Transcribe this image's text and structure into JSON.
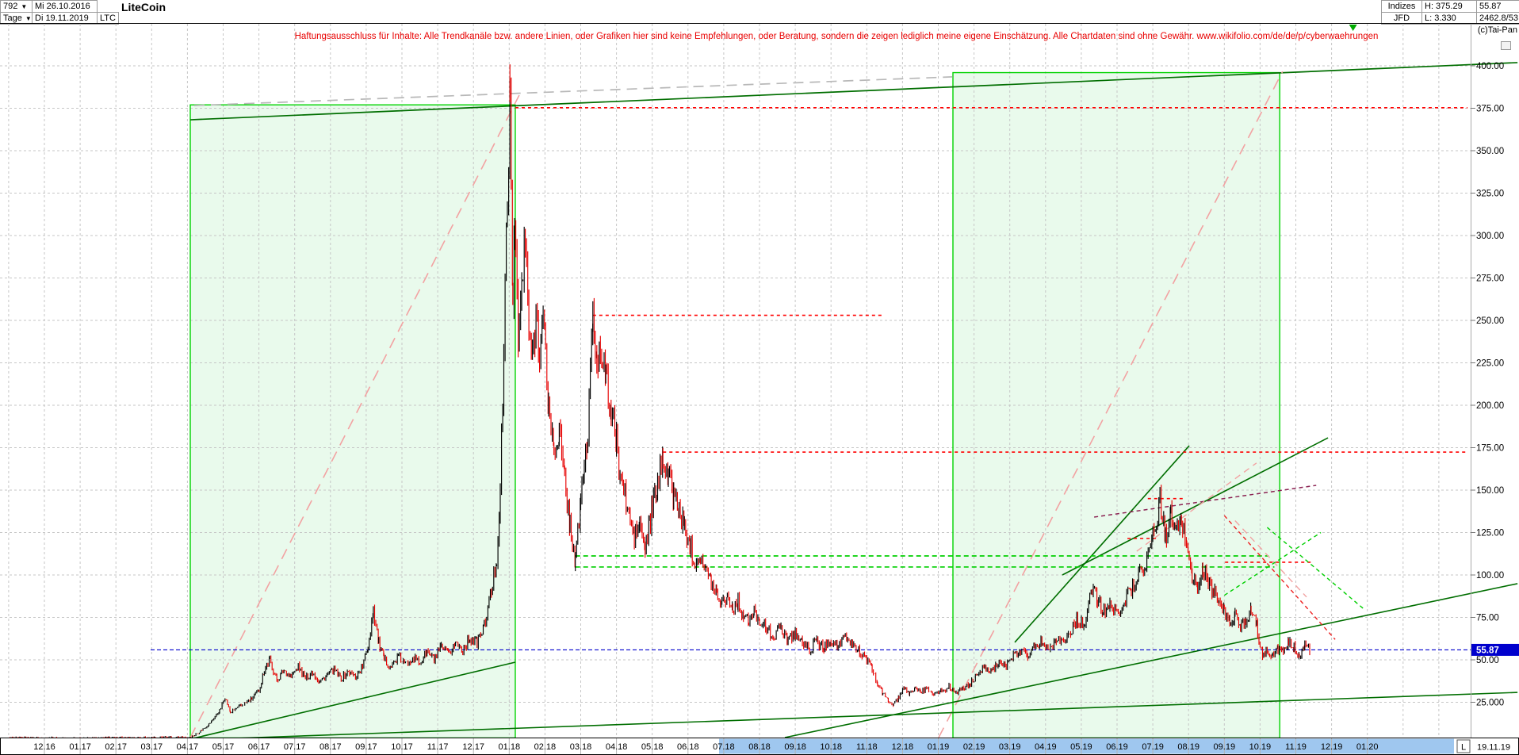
{
  "header": {
    "bars_count": "792",
    "dropdown_icon": "▼",
    "start_date": "Mi 26.10.2016",
    "period": "Tage",
    "end_date": "Di 19.11.2019",
    "symbol": "LTC",
    "instrument_name": "LiteCoin",
    "provider_row1": "Indizes",
    "provider_row2": "JFD",
    "high_label": "H: 375.29",
    "low_label": "L: 3.330",
    "last_price": "55.87",
    "volume_info": "2462.8/53",
    "copyright": "(c)Tai-Pan",
    "collapse_glyph": "▭"
  },
  "disclaimer": "Haftungsausschluss für Inhalte: Alle Trendkanäle bzw. andere Linien, oder Grafiken hier sind keine Empfehlungen, oder Beratung, sondern die zeigen lediglich meine eigene Einschätzung. Alle Chartdaten sind ohne Gewähr.  www.wikifolio.com/de/de/p/cyberwaehrungen",
  "price_axis": {
    "labels": [
      "400.00",
      "375.00",
      "350.00",
      "325.00",
      "300.00",
      "275.00",
      "250.00",
      "225.00",
      "200.00",
      "175.00",
      "150.00",
      "125.00",
      "100.00",
      "75.00",
      "50.00",
      "25.000"
    ],
    "values": [
      400,
      375,
      350,
      325,
      300,
      275,
      250,
      225,
      200,
      175,
      150,
      125,
      100,
      75,
      50,
      25
    ],
    "current_price_label": "55.87",
    "current_price_value": 55.87
  },
  "time_axis": {
    "labels": [
      "12.16",
      "01.17",
      "02.17",
      "03.17",
      "04.17",
      "05.17",
      "06.17",
      "07.17",
      "08.17",
      "09.17",
      "10.17",
      "11.17",
      "12.17",
      "01.18",
      "02.18",
      "03.18",
      "04.18",
      "05.18",
      "06.18",
      "07.18",
      "08.18",
      "09.18",
      "10.18",
      "11.18",
      "12.18",
      "01.19",
      "02.19",
      "03.19",
      "04.19",
      "05.19",
      "06.19",
      "07.19",
      "08.19",
      "09.19",
      "10.19",
      "11.19",
      "12.19",
      "01.20"
    ],
    "highlight_from_label": "07.18",
    "highlight_to_label": "01.20",
    "last_bar_label": "L",
    "last_date": "19.11.19"
  },
  "chart_data": {
    "type": "candlestick-daily",
    "instrument": "LiteCoin (LTC)",
    "period_high": 375.29,
    "period_low": 3.33,
    "last_close": 55.87,
    "ylim": [
      4,
      410
    ],
    "grid": true,
    "price_anchors_month_price": [
      [
        -1,
        4.0
      ],
      [
        0,
        3.8
      ],
      [
        1,
        3.6
      ],
      [
        2,
        3.9
      ],
      [
        3,
        4.1
      ],
      [
        3.8,
        4.3
      ],
      [
        4.1,
        4.5
      ],
      [
        4.3,
        7
      ],
      [
        4.6,
        12
      ],
      [
        4.9,
        20
      ],
      [
        5.05,
        28
      ],
      [
        5.2,
        19
      ],
      [
        5.5,
        23
      ],
      [
        5.8,
        27
      ],
      [
        6.0,
        32
      ],
      [
        6.15,
        44
      ],
      [
        6.3,
        50
      ],
      [
        6.5,
        38
      ],
      [
        6.7,
        44
      ],
      [
        6.9,
        40
      ],
      [
        7.1,
        46
      ],
      [
        7.3,
        39
      ],
      [
        7.5,
        43
      ],
      [
        7.7,
        37
      ],
      [
        7.9,
        41
      ],
      [
        8.1,
        44
      ],
      [
        8.3,
        39
      ],
      [
        8.5,
        43
      ],
      [
        8.7,
        40
      ],
      [
        8.9,
        46
      ],
      [
        9.05,
        58
      ],
      [
        9.2,
        80
      ],
      [
        9.35,
        60
      ],
      [
        9.5,
        50
      ],
      [
        9.7,
        46
      ],
      [
        9.9,
        52
      ],
      [
        10.1,
        47
      ],
      [
        10.3,
        52
      ],
      [
        10.5,
        48
      ],
      [
        10.7,
        55
      ],
      [
        10.9,
        50
      ],
      [
        11.1,
        57
      ],
      [
        11.3,
        53
      ],
      [
        11.5,
        60
      ],
      [
        11.7,
        56
      ],
      [
        11.9,
        63
      ],
      [
        12.1,
        60
      ],
      [
        12.3,
        70
      ],
      [
        12.5,
        90
      ],
      [
        12.65,
        110
      ],
      [
        12.75,
        150
      ],
      [
        12.85,
        230
      ],
      [
        12.95,
        330
      ],
      [
        13.02,
        375
      ],
      [
        13.1,
        260
      ],
      [
        13.15,
        320
      ],
      [
        13.25,
        235
      ],
      [
        13.35,
        270
      ],
      [
        13.45,
        295
      ],
      [
        13.55,
        245
      ],
      [
        13.65,
        225
      ],
      [
        13.75,
        255
      ],
      [
        13.85,
        235
      ],
      [
        13.95,
        250
      ],
      [
        14.1,
        200
      ],
      [
        14.25,
        172
      ],
      [
        14.4,
        185
      ],
      [
        14.55,
        155
      ],
      [
        14.7,
        130
      ],
      [
        14.85,
        107
      ],
      [
        15.0,
        145
      ],
      [
        15.1,
        165
      ],
      [
        15.2,
        182
      ],
      [
        15.34,
        253
      ],
      [
        15.45,
        225
      ],
      [
        15.55,
        240
      ],
      [
        15.7,
        215
      ],
      [
        15.85,
        196
      ],
      [
        16.0,
        178
      ],
      [
        16.1,
        160
      ],
      [
        16.2,
        150
      ],
      [
        16.35,
        135
      ],
      [
        16.5,
        122
      ],
      [
        16.65,
        130
      ],
      [
        16.8,
        115
      ],
      [
        16.95,
        132
      ],
      [
        17.0,
        140
      ],
      [
        17.15,
        152
      ],
      [
        17.3,
        172
      ],
      [
        17.45,
        158
      ],
      [
        17.6,
        148
      ],
      [
        17.75,
        138
      ],
      [
        17.9,
        128
      ],
      [
        18.05,
        118
      ],
      [
        18.2,
        108
      ],
      [
        18.35,
        112
      ],
      [
        18.5,
        102
      ],
      [
        18.65,
        96
      ],
      [
        18.8,
        90
      ],
      [
        18.95,
        84
      ],
      [
        19.1,
        88
      ],
      [
        19.25,
        80
      ],
      [
        19.4,
        84
      ],
      [
        19.55,
        76
      ],
      [
        19.7,
        72
      ],
      [
        19.85,
        78
      ],
      [
        20.0,
        74
      ],
      [
        20.2,
        68
      ],
      [
        20.4,
        64
      ],
      [
        20.6,
        69
      ],
      [
        20.8,
        62
      ],
      [
        21.0,
        66
      ],
      [
        21.2,
        60
      ],
      [
        21.4,
        56
      ],
      [
        21.6,
        61
      ],
      [
        21.8,
        57
      ],
      [
        22.0,
        62
      ],
      [
        22.2,
        58
      ],
      [
        22.4,
        63
      ],
      [
        22.6,
        59
      ],
      [
        22.8,
        55
      ],
      [
        23.0,
        50
      ],
      [
        23.15,
        44
      ],
      [
        23.3,
        36
      ],
      [
        23.45,
        30
      ],
      [
        23.6,
        26
      ],
      [
        23.75,
        23.5
      ],
      [
        23.9,
        28
      ],
      [
        24.05,
        33
      ],
      [
        24.2,
        30
      ],
      [
        24.35,
        34
      ],
      [
        24.5,
        31
      ],
      [
        24.7,
        33
      ],
      [
        24.9,
        30
      ],
      [
        25.1,
        32
      ],
      [
        25.3,
        34
      ],
      [
        25.5,
        31
      ],
      [
        25.7,
        33
      ],
      [
        25.9,
        36
      ],
      [
        26.1,
        42
      ],
      [
        26.3,
        46
      ],
      [
        26.5,
        44
      ],
      [
        26.7,
        49
      ],
      [
        26.9,
        46
      ],
      [
        27.1,
        52
      ],
      [
        27.3,
        56
      ],
      [
        27.5,
        53
      ],
      [
        27.7,
        58
      ],
      [
        27.9,
        61
      ],
      [
        28.1,
        57
      ],
      [
        28.3,
        63
      ],
      [
        28.5,
        60
      ],
      [
        28.7,
        67
      ],
      [
        28.9,
        74
      ],
      [
        29.1,
        70
      ],
      [
        29.3,
        92
      ],
      [
        29.45,
        86
      ],
      [
        29.6,
        78
      ],
      [
        29.8,
        82
      ],
      [
        30.0,
        77
      ],
      [
        30.2,
        85
      ],
      [
        30.4,
        92
      ],
      [
        30.6,
        100
      ],
      [
        30.8,
        108
      ],
      [
        31.0,
        122
      ],
      [
        31.1,
        132
      ],
      [
        31.2,
        145
      ],
      [
        31.35,
        122
      ],
      [
        31.5,
        135
      ],
      [
        31.65,
        125
      ],
      [
        31.8,
        131
      ],
      [
        31.95,
        120
      ],
      [
        32.1,
        99
      ],
      [
        32.25,
        92
      ],
      [
        32.4,
        103
      ],
      [
        32.55,
        96
      ],
      [
        32.7,
        90
      ],
      [
        32.85,
        84
      ],
      [
        33.0,
        78
      ],
      [
        33.15,
        72
      ],
      [
        33.3,
        76
      ],
      [
        33.45,
        70
      ],
      [
        33.6,
        74
      ],
      [
        33.75,
        80
      ],
      [
        33.9,
        70
      ],
      [
        34.0,
        58
      ],
      [
        34.1,
        52
      ],
      [
        34.2,
        56
      ],
      [
        34.35,
        52
      ],
      [
        34.5,
        57
      ],
      [
        34.65,
        54
      ],
      [
        34.8,
        60
      ],
      [
        34.95,
        57
      ],
      [
        35.1,
        53
      ],
      [
        35.25,
        58
      ],
      [
        35.4,
        55.87
      ]
    ],
    "channel_boxes": [
      {
        "name": "trend-box-2017",
        "m0": 4.08,
        "m1": 13.17,
        "p0": 4,
        "p1": 377
      },
      {
        "name": "trend-box-2019",
        "m0": 25.41,
        "m1": 34.55,
        "p0": 4,
        "p1": 396
      }
    ],
    "trendlines": [
      {
        "name": "long-term-resistance-line",
        "from": [
          4.08,
          368.2
        ],
        "to": [
          41.2,
          401.9
        ],
        "color": "#006e00",
        "dash": "",
        "w": 1.7
      },
      {
        "name": "gray-projection-line",
        "from": [
          4.19,
          376.6
        ],
        "to": [
          25.4,
          393.5
        ],
        "color": "#b8b8b8",
        "dash": "13,8",
        "w": 1.7
      },
      {
        "name": "rally-2017-trendline",
        "from": [
          4.08,
          4.2
        ],
        "to": [
          13.28,
          382.7
        ],
        "color": "#f2a2a2",
        "dash": "14,9",
        "w": 1.6
      },
      {
        "name": "rally-2019-trendline",
        "from": [
          25.01,
          4.2
        ],
        "to": [
          34.63,
          396.7
        ],
        "color": "#f2a2a2",
        "dash": "14,9",
        "w": 1.6
      },
      {
        "name": "support-2017-inner-line",
        "from": [
          4.08,
          3.3
        ],
        "to": [
          13.17,
          48.6
        ],
        "color": "#006e00",
        "dash": "",
        "w": 1.6
      },
      {
        "name": "long-term-support-line",
        "from": [
          4.08,
          2.8
        ],
        "to": [
          41.2,
          30.8
        ],
        "color": "#006e00",
        "dash": "",
        "w": 1.6
      },
      {
        "name": "support-2019-line",
        "from": [
          20.71,
          4.2
        ],
        "to": [
          41.2,
          94.9
        ],
        "color": "#006e00",
        "dash": "",
        "w": 1.6
      },
      {
        "name": "steep-2019-peak-line",
        "from": [
          27.14,
          60.3
        ],
        "to": [
          32.02,
          176.2
        ],
        "color": "#006e00",
        "dash": "",
        "w": 1.6
      },
      {
        "name": "rising-2019-channel-line",
        "from": [
          28.47,
          100
        ],
        "to": [
          35.9,
          180.8
        ],
        "color": "#006e00",
        "dash": "",
        "w": 1.6
      },
      {
        "name": "resistance-375-level",
        "from": [
          13.17,
          375.3
        ],
        "to": [
          39.8,
          375.3
        ],
        "color": "#ff0000",
        "dash": "4,4",
        "w": 1.6
      },
      {
        "name": "resistance-253-level",
        "from": [
          15.34,
          253
        ],
        "to": [
          23.48,
          253
        ],
        "color": "#ff0000",
        "dash": "4,4",
        "w": 1.6
      },
      {
        "name": "resistance-172-level",
        "from": [
          17.3,
          172.4
        ],
        "to": [
          39.8,
          172.4
        ],
        "color": "#ff0000",
        "dash": "4,4",
        "w": 1.6
      },
      {
        "name": "peak-2019-level",
        "from": [
          30.86,
          145
        ],
        "to": [
          31.84,
          145
        ],
        "color": "#ff0000",
        "dash": "4,4",
        "w": 1.6
      },
      {
        "name": "minor-level-121",
        "from": [
          30.29,
          121.5
        ],
        "to": [
          31.17,
          121.5
        ],
        "color": "#ff0000",
        "dash": "4,4",
        "w": 1.6
      },
      {
        "name": "minor-level-107",
        "from": [
          33.02,
          107.5
        ],
        "to": [
          35.45,
          107.5
        ],
        "color": "#ff0000",
        "dash": "4,4",
        "w": 1.6
      },
      {
        "name": "support-111-level",
        "from": [
          14.85,
          111.2
        ],
        "to": [
          34.24,
          111.2
        ],
        "color": "#00cf00",
        "dash": "6,4",
        "w": 1.7
      },
      {
        "name": "support-104-level",
        "from": [
          14.85,
          104.7
        ],
        "to": [
          34.4,
          104.7
        ],
        "color": "#00cf00",
        "dash": "6,4",
        "w": 1.7
      },
      {
        "name": "purple-fan-line",
        "from": [
          29.36,
          134.1
        ],
        "to": [
          35.57,
          152.8
        ],
        "color": "#8b2252",
        "dash": "5,4",
        "w": 1.5
      },
      {
        "name": "wedge-left-line",
        "from": [
          30.55,
          114
        ],
        "to": [
          33.9,
          166
        ],
        "color": "#f2a2a2",
        "dash": "8,6",
        "w": 1.4
      },
      {
        "name": "wedge-right-line",
        "from": [
          33.3,
          132
        ],
        "to": [
          35.3,
          87
        ],
        "color": "#f2a2a2",
        "dash": "8,6",
        "w": 1.4
      },
      {
        "name": "decline-2019-line",
        "from": [
          33.0,
          135
        ],
        "to": [
          36.1,
          62
        ],
        "color": "#ee2222",
        "dash": "5,4",
        "w": 1.4
      },
      {
        "name": "minor-green-rising-line",
        "from": [
          33.0,
          88
        ],
        "to": [
          35.7,
          125
        ],
        "color": "#00cf00",
        "dash": "5,4",
        "w": 1.4
      },
      {
        "name": "minor-green-falling-line",
        "from": [
          34.2,
          128
        ],
        "to": [
          36.9,
          80
        ],
        "color": "#00cf00",
        "dash": "5,4",
        "w": 1.4
      }
    ],
    "current_price_line": {
      "price": 55.87,
      "color": "#0000cd"
    },
    "marker": {
      "month": 36.6,
      "type": "triangle-down",
      "color": "#00aa00"
    },
    "colors": {
      "up_candle": "#000000",
      "down_candle": "#e60000",
      "grid": "#c6c6c6",
      "box_fill": "#e9faec",
      "box_border": "#00d300",
      "axis_highlight": "#9fc7ef",
      "price_badge_bg": "#0000cd",
      "price_badge_text": "#ffffff"
    }
  }
}
